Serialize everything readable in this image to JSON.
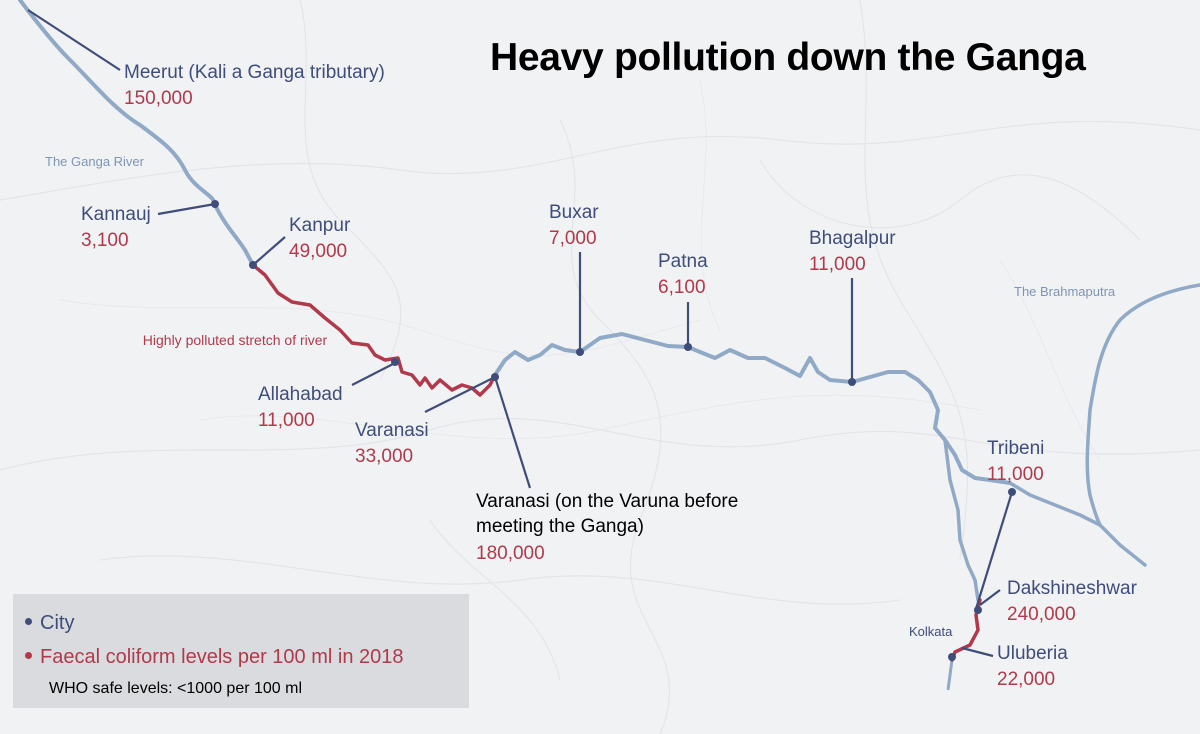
{
  "title": "Heavy pollution down the Ganga",
  "colors": {
    "river": "#8fa9c7",
    "polluted": "#b03a4c",
    "city": "#3f4d7a",
    "value": "#b03a4c",
    "background": "#f1f2f4"
  },
  "rivers": {
    "ganga_label": "The Ganga River",
    "brahmaputra_label": "The Brahmaputra",
    "polluted_note": "Highly polluted stretch of river"
  },
  "places": {
    "kolkata": "Kolkata"
  },
  "cities": [
    {
      "id": "meerut",
      "name": "Meerut (Kali a Ganga tributary)",
      "value": "150,000"
    },
    {
      "id": "kannauj",
      "name": "Kannauj",
      "value": "3,100"
    },
    {
      "id": "kanpur",
      "name": "Kanpur",
      "value": "49,000"
    },
    {
      "id": "allahabad",
      "name": "Allahabad",
      "value": "11,000"
    },
    {
      "id": "varanasi",
      "name": "Varanasi",
      "value": "33,000"
    },
    {
      "id": "varanasi-varuna",
      "name": "Varanasi (on the Varuna before meeting the Ganga)",
      "value": "180,000"
    },
    {
      "id": "buxar",
      "name": "Buxar",
      "value": "7,000"
    },
    {
      "id": "patna",
      "name": "Patna",
      "value": "6,100"
    },
    {
      "id": "bhagalpur",
      "name": "Bhagalpur",
      "value": "11,000"
    },
    {
      "id": "tribeni",
      "name": "Tribeni",
      "value": "11,000"
    },
    {
      "id": "dakshineshwar",
      "name": "Dakshineshwar",
      "value": "240,000"
    },
    {
      "id": "uluberia",
      "name": "Uluberia",
      "value": "22,000"
    }
  ],
  "legend": {
    "city": "City",
    "faecal": "Faecal coliform levels per 100 ml in 2018",
    "who": "WHO safe levels: <1000 per 100 ml"
  }
}
